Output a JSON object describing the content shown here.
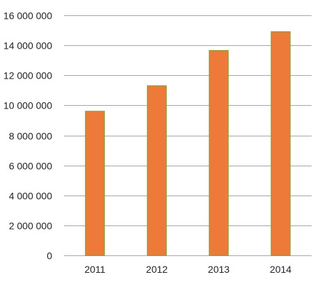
{
  "chart_data": {
    "type": "bar",
    "categories": [
      "2011",
      "2012",
      "2013",
      "2014"
    ],
    "values": [
      9600000,
      11300000,
      13650000,
      14900000
    ],
    "title": "",
    "xlabel": "",
    "ylabel": "",
    "ylim": [
      0,
      16000000
    ],
    "yticks": [
      0,
      2000000,
      4000000,
      6000000,
      8000000,
      10000000,
      12000000,
      14000000,
      16000000
    ],
    "ytick_labels": [
      "0",
      "2 000 000",
      "4 000 000",
      "6 000 000",
      "8 000 000",
      "10 000 000",
      "12 000 000",
      "14 000 000",
      "16 000 000"
    ],
    "grid": true,
    "legend": "none",
    "colors": {
      "bar_fill": "#EE7A3A",
      "bar_edge": "#9A9A3A",
      "grid": "#A6A6A6"
    }
  }
}
